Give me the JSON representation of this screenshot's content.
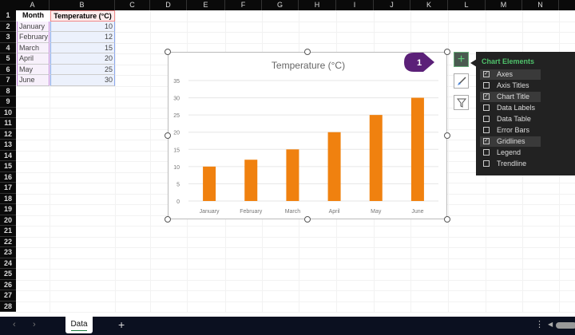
{
  "columns": [
    "A",
    "B",
    "C",
    "D",
    "E",
    "F",
    "G",
    "H",
    "I",
    "J",
    "K",
    "L",
    "M",
    "N"
  ],
  "rows": 28,
  "table": {
    "headers": [
      "Month",
      "Temperature (°C)"
    ],
    "data": [
      [
        "January",
        10
      ],
      [
        "February",
        12
      ],
      [
        "March",
        15
      ],
      [
        "April",
        20
      ],
      [
        "May",
        25
      ],
      [
        "June",
        30
      ]
    ]
  },
  "chart_data": {
    "type": "bar",
    "title": "Temperature (°C)",
    "categories": [
      "January",
      "February",
      "March",
      "April",
      "May",
      "June"
    ],
    "values": [
      10,
      12,
      15,
      20,
      25,
      30
    ],
    "ylim": [
      0,
      35
    ],
    "yticks": [
      0,
      5,
      10,
      15,
      20,
      25,
      30,
      35
    ],
    "grid": true,
    "bar_color": "#f0810f"
  },
  "callout": {
    "label": "1",
    "color": "#5b2078"
  },
  "chart_buttons": [
    "plus-icon",
    "brush-icon",
    "filter-icon"
  ],
  "panel": {
    "title": "Chart Elements",
    "title_color": "#4fc26b",
    "items": [
      {
        "label": "Axes",
        "checked": true
      },
      {
        "label": "Axis Titles",
        "checked": false
      },
      {
        "label": "Chart Title",
        "checked": true
      },
      {
        "label": "Data Labels",
        "checked": false
      },
      {
        "label": "Data Table",
        "checked": false
      },
      {
        "label": "Error Bars",
        "checked": false
      },
      {
        "label": "Gridlines",
        "checked": true
      },
      {
        "label": "Legend",
        "checked": false
      },
      {
        "label": "Trendline",
        "checked": false
      }
    ]
  },
  "sheet_tabs": {
    "active": "Data",
    "add": "+"
  }
}
